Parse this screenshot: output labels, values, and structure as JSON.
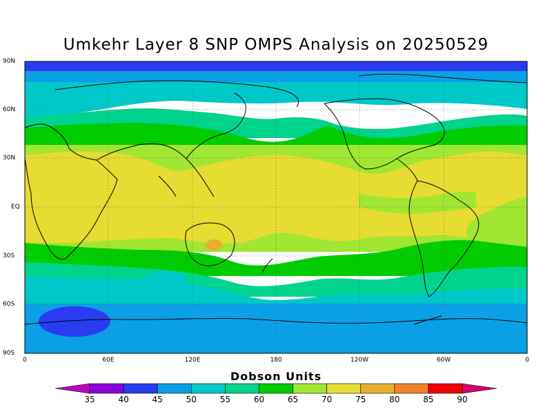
{
  "title": "Umkehr Layer 8 SNP OMPS Analysis on 20250529",
  "lat_labels": [
    "90N",
    "60N",
    "30N",
    "EQ",
    "30S",
    "60S",
    "90S"
  ],
  "lon_labels": [
    "0",
    "60E",
    "120E",
    "180",
    "120W",
    "60W",
    "0"
  ],
  "colorbar": {
    "title": "Dobson Units",
    "ticks": [
      "35",
      "40",
      "45",
      "50",
      "55",
      "60",
      "65",
      "70",
      "75",
      "80",
      "85",
      "90"
    ],
    "colors": [
      "#c000c0",
      "#8a00d8",
      "#2a3cf0",
      "#0aa0e6",
      "#00c8c8",
      "#00d38c",
      "#00cc00",
      "#a0e632",
      "#e6dc32",
      "#e6af2d",
      "#f0822d",
      "#f00000",
      "#d2006e"
    ]
  }
}
